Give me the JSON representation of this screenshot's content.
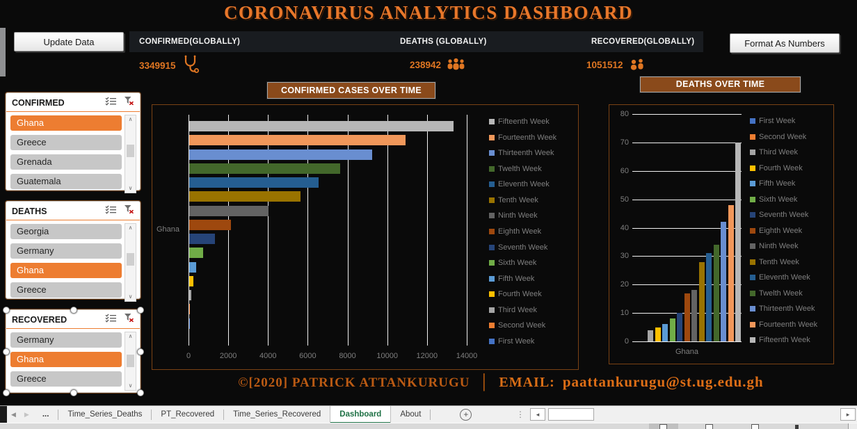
{
  "app": {
    "title": "CORONAVIRUS ANALYTICS DASHBOARD",
    "background": "#0a0a0a",
    "accent": "#E8772A"
  },
  "toolbar": {
    "update_label": "Update Data",
    "format_label": "Format As Numbers"
  },
  "stats": [
    {
      "label": "CONFIRMED(GLOBALLY)",
      "value": "3349915",
      "icon": "stethoscope-icon"
    },
    {
      "label": "DEATHS  (GLOBALLY)",
      "value": "238942",
      "icon": "people-group-icon"
    },
    {
      "label": "RECOVERED(GLOBALLY)",
      "value": "1051512",
      "icon": "people-group-icon"
    }
  ],
  "slicers": [
    {
      "title": "CONFIRMED",
      "header_icons": [
        "multiselect-icon",
        "clear-filter-icon"
      ],
      "items": [
        {
          "label": "Ghana",
          "selected": true
        },
        {
          "label": "Greece",
          "selected": false
        },
        {
          "label": "Grenada",
          "selected": false
        },
        {
          "label": "Guatemala",
          "selected": false
        }
      ],
      "selected_object": false
    },
    {
      "title": "DEATHS",
      "header_icons": [
        "multiselect-icon",
        "clear-filter-icon"
      ],
      "items": [
        {
          "label": "Georgia",
          "selected": false
        },
        {
          "label": "Germany",
          "selected": false
        },
        {
          "label": "Ghana",
          "selected": true
        },
        {
          "label": "Greece",
          "selected": false
        }
      ],
      "selected_object": false
    },
    {
      "title": "RECOVERED",
      "header_icons": [
        "multiselect-icon",
        "clear-filter-icon"
      ],
      "items": [
        {
          "label": "Germany",
          "selected": false
        },
        {
          "label": "Ghana",
          "selected": true
        },
        {
          "label": "Greece",
          "selected": false
        }
      ],
      "selected_object": true
    }
  ],
  "chart_data": [
    {
      "type": "bar",
      "orientation": "horizontal",
      "title": "CONFIRMED CASES OVER TIME",
      "categories": [
        "Ghana"
      ],
      "series": [
        {
          "name": "First Week",
          "color": "#4472C4",
          "values": [
            10
          ]
        },
        {
          "name": "Second Week",
          "color": "#ED7D31",
          "values": [
            25
          ]
        },
        {
          "name": "Third Week",
          "color": "#A5A5A5",
          "values": [
            120
          ]
        },
        {
          "name": "Fourth Week",
          "color": "#FFC000",
          "values": [
            200
          ]
        },
        {
          "name": "Fifth Week",
          "color": "#5B9BD5",
          "values": [
            350
          ]
        },
        {
          "name": "Sixth Week",
          "color": "#70AD47",
          "values": [
            700
          ]
        },
        {
          "name": "Seventh Week",
          "color": "#264478",
          "values": [
            1300
          ]
        },
        {
          "name": "Eighth Week",
          "color": "#9E480E",
          "values": [
            2100
          ]
        },
        {
          "name": "Ninth Week",
          "color": "#636363",
          "values": [
            4000
          ]
        },
        {
          "name": "Tenth Week",
          "color": "#997300",
          "values": [
            5600
          ]
        },
        {
          "name": "Eleventh Week",
          "color": "#255E91",
          "values": [
            6500
          ]
        },
        {
          "name": "Twelth Week",
          "color": "#43682B",
          "values": [
            7600
          ]
        },
        {
          "name": "Thirteenth Week",
          "color": "#698ED0",
          "values": [
            9200
          ]
        },
        {
          "name": "Fourteenth Week",
          "color": "#F1975A",
          "values": [
            10900
          ]
        },
        {
          "name": "Fifteenth Week",
          "color": "#B7B7B7",
          "values": [
            13300
          ]
        }
      ],
      "xlim": [
        0,
        14000
      ],
      "x_ticks": [
        0,
        2000,
        4000,
        6000,
        8000,
        10000,
        12000,
        14000
      ],
      "gridlines": "vertical",
      "legend_position": "right",
      "legend_order": "last-to-first"
    },
    {
      "type": "bar",
      "orientation": "vertical",
      "title": "DEATHS OVER TIME",
      "categories": [
        "Ghana"
      ],
      "series": [
        {
          "name": "First Week",
          "color": "#4472C4",
          "values": [
            0
          ]
        },
        {
          "name": "Second Week",
          "color": "#ED7D31",
          "values": [
            0
          ]
        },
        {
          "name": "Third Week",
          "color": "#A5A5A5",
          "values": [
            4
          ]
        },
        {
          "name": "Fourth Week",
          "color": "#FFC000",
          "values": [
            5
          ]
        },
        {
          "name": "Fifth Week",
          "color": "#5B9BD5",
          "values": [
            6
          ]
        },
        {
          "name": "Sixth Week",
          "color": "#70AD47",
          "values": [
            8
          ]
        },
        {
          "name": "Seventh Week",
          "color": "#264478",
          "values": [
            10
          ]
        },
        {
          "name": "Eighth Week",
          "color": "#9E480E",
          "values": [
            17
          ]
        },
        {
          "name": "Ninth Week",
          "color": "#636363",
          "values": [
            18
          ]
        },
        {
          "name": "Tenth Week",
          "color": "#997300",
          "values": [
            28
          ]
        },
        {
          "name": "Eleventh Week",
          "color": "#255E91",
          "values": [
            31
          ]
        },
        {
          "name": "Twelth Week",
          "color": "#43682B",
          "values": [
            34
          ]
        },
        {
          "name": "Thirteenth Week",
          "color": "#698ED0",
          "values": [
            42
          ]
        },
        {
          "name": "Fourteenth Week",
          "color": "#F1975A",
          "values": [
            48
          ]
        },
        {
          "name": "Fifteenth Week",
          "color": "#B7B7B7",
          "values": [
            70
          ]
        }
      ],
      "ylim": [
        0,
        80
      ],
      "y_ticks": [
        0,
        10,
        20,
        30,
        40,
        50,
        60,
        70,
        80
      ],
      "gridlines": "horizontal",
      "legend_position": "right",
      "legend_order": "first-to-last"
    }
  ],
  "footer": {
    "copyright": "©[2020] PATRICK ATTANKURUGU",
    "separator": "│",
    "email_label": "EMAIL:",
    "email": "paattankurugu@st.ug.edu.gh"
  },
  "sheet_tabs": {
    "tabs": [
      {
        "label": "...",
        "active": false
      },
      {
        "label": "Time_Series_Deaths",
        "active": false
      },
      {
        "label": "PT_Recovered",
        "active": false
      },
      {
        "label": "Time_Series_Recovered",
        "active": false
      },
      {
        "label": "Dashboard",
        "active": true
      },
      {
        "label": "About",
        "active": false
      }
    ],
    "active_color": "#1E7145"
  },
  "icons": {
    "nav_prev": "◀",
    "nav_next": "▶",
    "new_sheet": "+",
    "more": "⋮",
    "scroll_left": "◂",
    "scroll_right": "▸",
    "scroll_up": "∧",
    "scroll_down": "∨"
  }
}
